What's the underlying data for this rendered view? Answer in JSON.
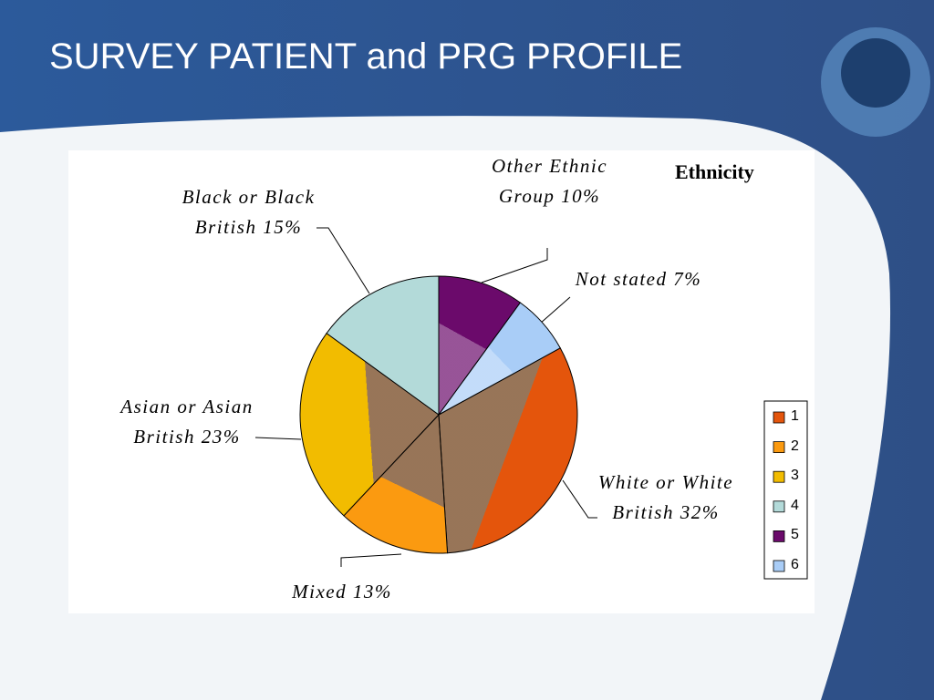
{
  "header": {
    "title": "SURVEY PATIENT and PRG PROFILE"
  },
  "chart_data": {
    "type": "pie",
    "title": "Ethnicity",
    "categories": [
      "White or White British",
      "Mixed",
      "Asian or Asian British",
      "Black or Black British",
      "Other Ethnic Group",
      "Not stated"
    ],
    "values": [
      32,
      13,
      23,
      15,
      10,
      7
    ],
    "value_labels": [
      "32%",
      "13%",
      "23%",
      "15%",
      "10%",
      "7%"
    ],
    "colors": [
      "#e4550c",
      "#fb9a10",
      "#f2bc00",
      "#b3dad9",
      "#6b0a6b",
      "#a9cdf7"
    ],
    "legend": [
      "1",
      "2",
      "3",
      "4",
      "5",
      "6"
    ]
  }
}
